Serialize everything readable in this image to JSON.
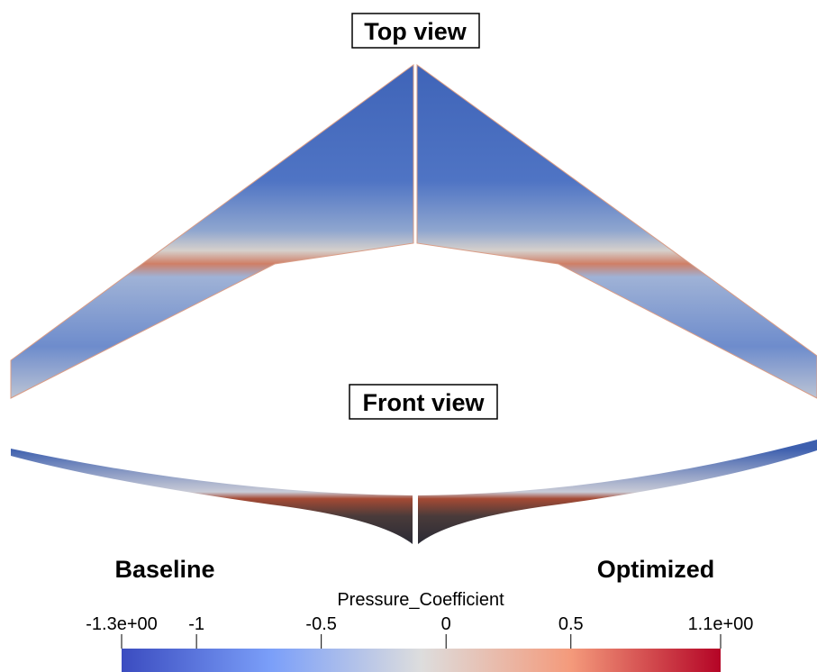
{
  "views": {
    "top": "Top view",
    "front": "Front view"
  },
  "cases": {
    "left": "Baseline",
    "right": "Optimized"
  },
  "colorbar": {
    "title": "Pressure_Coefficient",
    "range": [
      -1.3,
      1.1
    ],
    "ticks": [
      {
        "value": -1.3,
        "label": "-1.3e+00"
      },
      -1,
      -0.5,
      0,
      0.5,
      {
        "value": 1.1,
        "label": "1.1e+00"
      }
    ]
  }
}
